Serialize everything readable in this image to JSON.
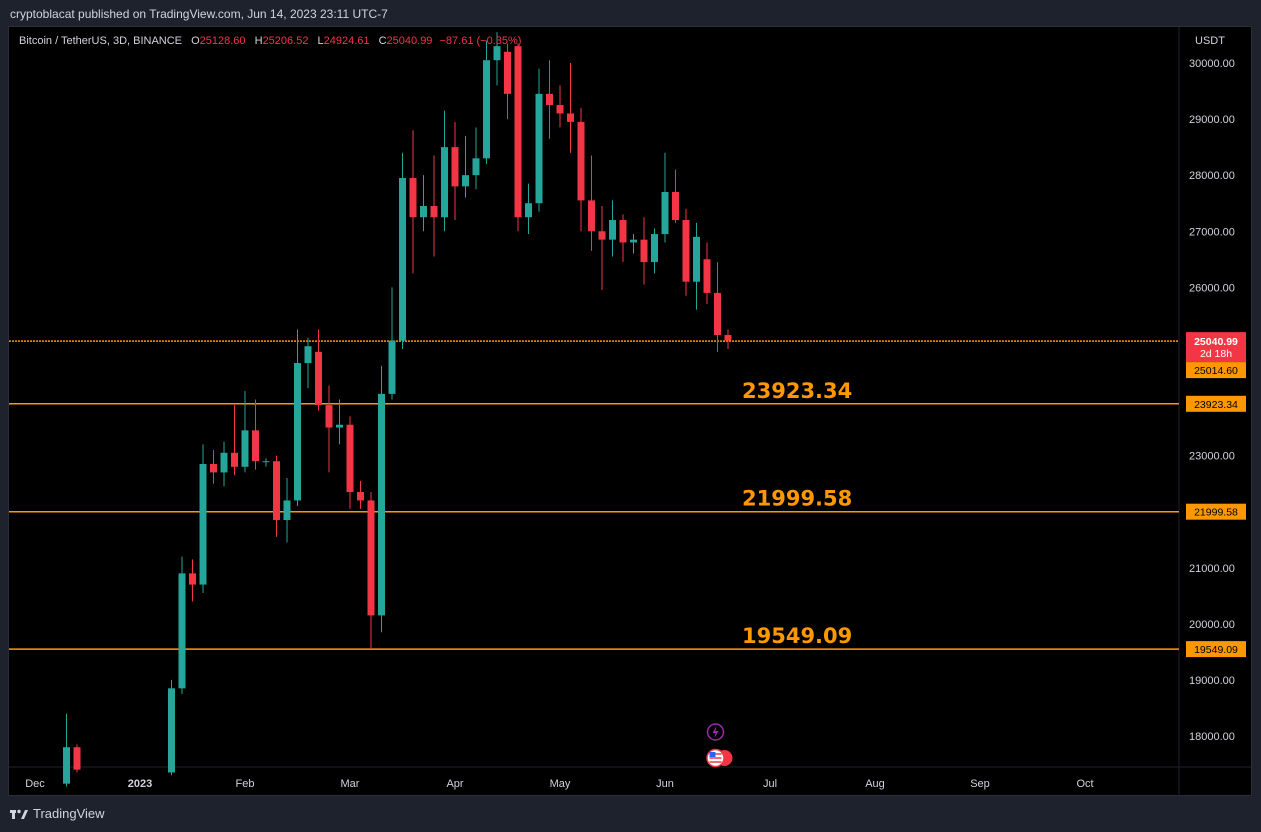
{
  "header": {
    "published_line": "cryptoblacat published on TradingView.com, Jun 14, 2023 23:11 UTC-7"
  },
  "legend": {
    "symbol": "Bitcoin / TetherUS, 3D, BINANCE",
    "open_label": "O",
    "open": "25128.60",
    "high_label": "H",
    "high": "25206.52",
    "low_label": "L",
    "low": "24924.61",
    "close_label": "C",
    "close": "25040.99",
    "change": "−87.61 (−0.35%)"
  },
  "axis": {
    "currency": "USDT"
  },
  "footer": {
    "brand": "TradingView",
    "logo_icon": "tradingview-logo-icon"
  },
  "colors": {
    "up": "#26a69a",
    "down": "#f23645",
    "level_line": "#ff9800",
    "level_text": "#ff9800",
    "price_tag": "#f23645",
    "background": "#000000"
  },
  "chart_data": {
    "type": "candlestick",
    "title": "Bitcoin / TetherUS, 3D, BINANCE",
    "ylim": [
      17400,
      30550
    ],
    "y_ticks": [
      "18000.00",
      "19000.00",
      "20000.00",
      "21000.00",
      "23000.00",
      "26000.00",
      "27000.00",
      "28000.00",
      "29000.00",
      "30000.00"
    ],
    "x_ticks": [
      {
        "label": "Dec",
        "index": 0
      },
      {
        "label": "2023",
        "index": 10
      },
      {
        "label": "Feb",
        "index": 20
      },
      {
        "label": "Mar",
        "index": 30
      },
      {
        "label": "Apr",
        "index": 40
      },
      {
        "label": "May",
        "index": 50
      },
      {
        "label": "Jun",
        "index": 60
      },
      {
        "label": "Jul",
        "index": 70
      },
      {
        "label": "Aug",
        "index": 80
      },
      {
        "label": "Sep",
        "index": 90
      },
      {
        "label": "Oct",
        "index": 100
      }
    ],
    "candles": [
      {
        "i": 3,
        "o": 17150,
        "h": 18400,
        "l": 17100,
        "c": 17800
      },
      {
        "i": 4,
        "o": 17800,
        "h": 17850,
        "l": 17350,
        "c": 17400
      },
      {
        "i": 13,
        "o": 17350,
        "h": 19000,
        "l": 17300,
        "c": 18850
      },
      {
        "i": 14,
        "o": 18850,
        "h": 21200,
        "l": 18750,
        "c": 20900
      },
      {
        "i": 15,
        "o": 20900,
        "h": 21150,
        "l": 20400,
        "c": 20700
      },
      {
        "i": 16,
        "o": 20700,
        "h": 23200,
        "l": 20550,
        "c": 22850
      },
      {
        "i": 17,
        "o": 22850,
        "h": 23100,
        "l": 22500,
        "c": 22700
      },
      {
        "i": 18,
        "o": 22700,
        "h": 23250,
        "l": 22450,
        "c": 23050
      },
      {
        "i": 19,
        "o": 23050,
        "h": 23900,
        "l": 22650,
        "c": 22800
      },
      {
        "i": 20,
        "o": 22800,
        "h": 24150,
        "l": 22700,
        "c": 23450
      },
      {
        "i": 21,
        "o": 23450,
        "h": 24000,
        "l": 22750,
        "c": 22900
      },
      {
        "i": 22,
        "o": 22900,
        "h": 22950,
        "l": 22800,
        "c": 22900
      },
      {
        "i": 23,
        "o": 22900,
        "h": 23000,
        "l": 21550,
        "c": 21850
      },
      {
        "i": 24,
        "o": 21850,
        "h": 22600,
        "l": 21450,
        "c": 22200
      },
      {
        "i": 25,
        "o": 22200,
        "h": 25250,
        "l": 22100,
        "c": 24650
      },
      {
        "i": 26,
        "o": 24650,
        "h": 25100,
        "l": 24200,
        "c": 24950
      },
      {
        "i": 27,
        "o": 24850,
        "h": 25250,
        "l": 23800,
        "c": 23900
      },
      {
        "i": 28,
        "o": 23900,
        "h": 24250,
        "l": 22700,
        "c": 23500
      },
      {
        "i": 29,
        "o": 23500,
        "h": 24000,
        "l": 23200,
        "c": 23550
      },
      {
        "i": 30,
        "o": 23550,
        "h": 23700,
        "l": 22050,
        "c": 22350
      },
      {
        "i": 31,
        "o": 22350,
        "h": 22550,
        "l": 22050,
        "c": 22200
      },
      {
        "i": 32,
        "o": 22200,
        "h": 22350,
        "l": 19550,
        "c": 20150
      },
      {
        "i": 33,
        "o": 20150,
        "h": 24600,
        "l": 19850,
        "c": 24100
      },
      {
        "i": 34,
        "o": 24100,
        "h": 26000,
        "l": 24000,
        "c": 25050
      },
      {
        "i": 35,
        "o": 25050,
        "h": 28400,
        "l": 24900,
        "c": 27950
      },
      {
        "i": 36,
        "o": 27950,
        "h": 28800,
        "l": 26250,
        "c": 27250
      },
      {
        "i": 37,
        "o": 27250,
        "h": 28000,
        "l": 27000,
        "c": 27450
      },
      {
        "i": 38,
        "o": 27450,
        "h": 28350,
        "l": 26550,
        "c": 27250
      },
      {
        "i": 39,
        "o": 27250,
        "h": 29150,
        "l": 27000,
        "c": 28500
      },
      {
        "i": 40,
        "o": 28500,
        "h": 28950,
        "l": 27200,
        "c": 27800
      },
      {
        "i": 41,
        "o": 27800,
        "h": 28700,
        "l": 27600,
        "c": 28000
      },
      {
        "i": 42,
        "o": 28000,
        "h": 28850,
        "l": 27750,
        "c": 28300
      },
      {
        "i": 43,
        "o": 28300,
        "h": 30400,
        "l": 28200,
        "c": 30050
      },
      {
        "i": 44,
        "o": 30050,
        "h": 30550,
        "l": 29600,
        "c": 30300
      },
      {
        "i": 45,
        "o": 30200,
        "h": 30350,
        "l": 29000,
        "c": 29450
      },
      {
        "i": 46,
        "o": 30300,
        "h": 30350,
        "l": 27000,
        "c": 27250
      },
      {
        "i": 47,
        "o": 27250,
        "h": 27850,
        "l": 26950,
        "c": 27500
      },
      {
        "i": 48,
        "o": 27500,
        "h": 29900,
        "l": 27350,
        "c": 29450
      },
      {
        "i": 49,
        "o": 29450,
        "h": 30050,
        "l": 28650,
        "c": 29250
      },
      {
        "i": 50,
        "o": 29250,
        "h": 29600,
        "l": 28850,
        "c": 29100
      },
      {
        "i": 51,
        "o": 29100,
        "h": 30000,
        "l": 28400,
        "c": 28950
      },
      {
        "i": 52,
        "o": 28950,
        "h": 29200,
        "l": 27000,
        "c": 27550
      },
      {
        "i": 53,
        "o": 27550,
        "h": 28350,
        "l": 26650,
        "c": 27000
      },
      {
        "i": 54,
        "o": 27000,
        "h": 27450,
        "l": 25950,
        "c": 26850
      },
      {
        "i": 55,
        "o": 26850,
        "h": 27550,
        "l": 26550,
        "c": 27200
      },
      {
        "i": 56,
        "o": 27200,
        "h": 27300,
        "l": 26450,
        "c": 26800
      },
      {
        "i": 57,
        "o": 26800,
        "h": 26950,
        "l": 26600,
        "c": 26850
      },
      {
        "i": 58,
        "o": 26850,
        "h": 27250,
        "l": 26050,
        "c": 26450
      },
      {
        "i": 59,
        "o": 26450,
        "h": 27050,
        "l": 26250,
        "c": 26950
      },
      {
        "i": 60,
        "o": 26950,
        "h": 28400,
        "l": 26800,
        "c": 27700
      },
      {
        "i": 61,
        "o": 27700,
        "h": 28100,
        "l": 27150,
        "c": 27200
      },
      {
        "i": 62,
        "o": 27200,
        "h": 27400,
        "l": 25850,
        "c": 26100
      },
      {
        "i": 63,
        "o": 26100,
        "h": 27150,
        "l": 25600,
        "c": 26900
      },
      {
        "i": 64,
        "o": 26500,
        "h": 26800,
        "l": 25700,
        "c": 25900
      },
      {
        "i": 65,
        "o": 25900,
        "h": 26450,
        "l": 24850,
        "c": 25150
      },
      {
        "i": 66,
        "o": 25150,
        "h": 25250,
        "l": 24900,
        "c": 25050
      }
    ],
    "levels": [
      {
        "value": 23923.34,
        "label": "23923.34",
        "tag": "23923.34"
      },
      {
        "value": 21999.58,
        "label": "21999.58",
        "tag": "21999.58"
      },
      {
        "value": 19549.09,
        "label": "19549.09",
        "tag": "19549.09"
      }
    ],
    "price_line": {
      "value": 25040.99,
      "tag": "25040.99",
      "countdown": "2d 18h",
      "prev_value": 25014.6,
      "prev_tag": "25014.60"
    },
    "event_icons": [
      "lightning-icon",
      "us-flag-icon"
    ]
  }
}
